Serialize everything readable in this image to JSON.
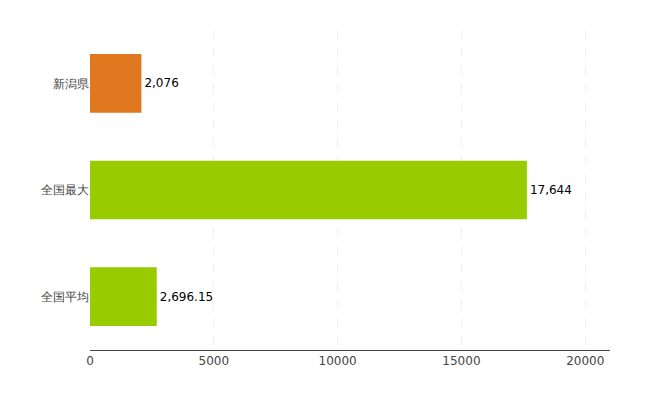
{
  "chart_data": {
    "type": "bar",
    "orientation": "horizontal",
    "categories": [
      "全国平均",
      "全国最大",
      "新潟県"
    ],
    "values": [
      2696.15,
      17644,
      2076
    ],
    "value_labels": [
      "2,696.15",
      "17,644",
      "2,076"
    ],
    "colors": [
      "#99cc00",
      "#99cc00",
      "#e07820"
    ],
    "xlim": [
      0,
      21000
    ],
    "xticks": [
      0,
      5000,
      10000,
      15000,
      20000
    ],
    "grid": true,
    "data_labels": true
  }
}
